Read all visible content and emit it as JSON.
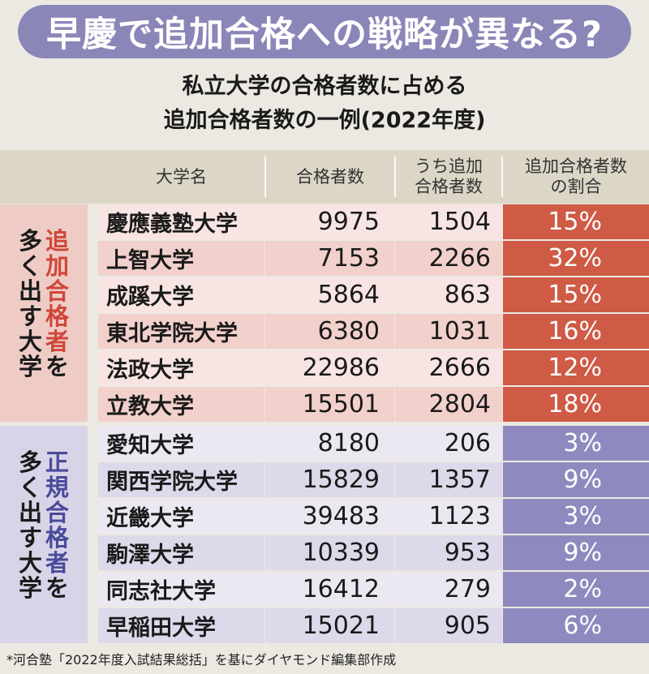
{
  "headline": "早慶で追加合格への戦略が異なる?",
  "subtitle": [
    "私立大学の合格者数に占める",
    "追加合格者数の一例(2022年度)"
  ],
  "chart_data": {
    "type": "table",
    "columns": [
      "大学名",
      "合格者数",
      "うち追加\n合格者数",
      "追加合格者数\nの割合"
    ],
    "groups": [
      {
        "label_cols": [
          "多く出す大学",
          "追加合格者を"
        ],
        "accent_chars": "追加合格者",
        "row_bg": [
          "#f8e5e3",
          "#f2d0cc"
        ],
        "pct_color": "#cf5a45",
        "rows": [
          {
            "name": "慶應義塾大学",
            "passed": 9975,
            "extra": 1504,
            "share": "15%"
          },
          {
            "name": "上智大学",
            "passed": 7153,
            "extra": 2266,
            "share": "32%"
          },
          {
            "name": "成蹊大学",
            "passed": 5864,
            "extra": 863,
            "share": "15%"
          },
          {
            "name": "東北学院大学",
            "passed": 6380,
            "extra": 1031,
            "share": "16%"
          },
          {
            "name": "法政大学",
            "passed": 22986,
            "extra": 2666,
            "share": "12%"
          },
          {
            "name": "立教大学",
            "passed": 15501,
            "extra": 2804,
            "share": "18%"
          }
        ]
      },
      {
        "label_cols": [
          "多く出す大学",
          "正規合格者を"
        ],
        "accent_chars": "正規合格者",
        "row_bg": [
          "#ebe8f2",
          "#ddd9ea"
        ],
        "pct_color": "#8e8abf",
        "rows": [
          {
            "name": "愛知大学",
            "passed": 8180,
            "extra": 206,
            "share": "3%"
          },
          {
            "name": "関西学院大学",
            "passed": 15829,
            "extra": 1357,
            "share": "9%"
          },
          {
            "name": "近畿大学",
            "passed": 39483,
            "extra": 1123,
            "share": "3%"
          },
          {
            "name": "駒澤大学",
            "passed": 10339,
            "extra": 953,
            "share": "9%"
          },
          {
            "name": "同志社大学",
            "passed": 16412,
            "extra": 279,
            "share": "2%"
          },
          {
            "name": "早稲田大学",
            "passed": 15021,
            "extra": 905,
            "share": "6%"
          }
        ]
      }
    ]
  },
  "colors": {
    "accent_red": "#d0463a",
    "accent_blue": "#4a4a9a",
    "group1_label_bg": "#eeccc5",
    "group2_label_bg": "#d8d4e8"
  },
  "footnote": "*河合塾「2022年度入試結果総括」を基にダイヤモンド編集部作成"
}
